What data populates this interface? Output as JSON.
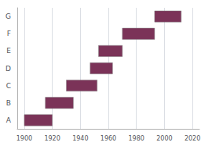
{
  "chart_data": {
    "type": "bar",
    "orientation": "horizontal",
    "categories": [
      "A",
      "B",
      "C",
      "D",
      "E",
      "F",
      "G"
    ],
    "values": [
      [
        1900,
        1920
      ],
      [
        1915,
        1935
      ],
      [
        1930,
        1952
      ],
      [
        1947,
        1963
      ],
      [
        1953,
        1970
      ],
      [
        1970,
        1993
      ],
      [
        1993,
        2012
      ]
    ],
    "color": "#7B3358",
    "xlim": [
      1895,
      2025
    ],
    "xticks": [
      1900,
      1920,
      1940,
      1960,
      1980,
      2000,
      2020
    ],
    "grid": true
  }
}
